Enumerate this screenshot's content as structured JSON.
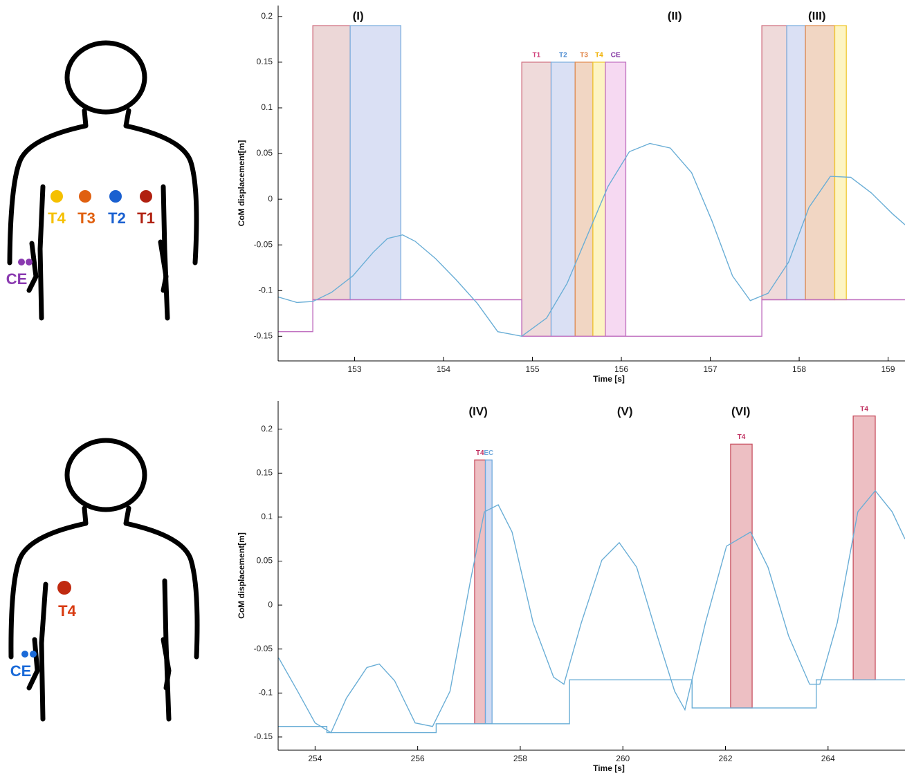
{
  "diagrams": [
    {
      "electrodes": [
        {
          "label": "T4",
          "color": "#f5c000"
        },
        {
          "label": "T3",
          "color": "#e06010"
        },
        {
          "label": "T2",
          "color": "#1a60d0"
        },
        {
          "label": "T1",
          "color": "#b02010"
        }
      ],
      "reference": {
        "label": "CE",
        "color": "#8a3ab0"
      }
    },
    {
      "electrodes": [
        {
          "label": "T4",
          "color": "#c02a10",
          "label_color": "#d83a10"
        }
      ],
      "reference": {
        "label": "CE",
        "color": "#1a6ad8"
      }
    }
  ],
  "chart_data": [
    {
      "type": "line",
      "ylabel": "CoM displacement[m]",
      "xlabel": "Time [s]",
      "xlim": [
        152.14,
        159.19
      ],
      "ylim": [
        -0.177,
        0.212
      ],
      "xticks": [
        153,
        154,
        155,
        156,
        157,
        158,
        159
      ],
      "yticks": [
        -0.15,
        -0.1,
        -0.05,
        0,
        0.05,
        0.1,
        0.15,
        0.2
      ],
      "annotations": [
        {
          "text": "(I)",
          "x": 153.04
        },
        {
          "text": "(II)",
          "x": 156.6
        },
        {
          "text": "(III)",
          "x": 158.2
        }
      ],
      "boxes": [
        {
          "x0": 152.53,
          "x1": 152.95,
          "y0": -0.11,
          "y1": 0.19,
          "color": "#e9d0d0",
          "edge": "#d07080"
        },
        {
          "x0": 152.95,
          "x1": 153.52,
          "y0": -0.11,
          "y1": 0.19,
          "color": "#d4daf2",
          "edge": "#7aaede"
        },
        {
          "x0": 154.88,
          "x1": 155.21,
          "y0": -0.15,
          "y1": 0.15,
          "color": "#ecd4d4",
          "edge": "#d07080",
          "label": "T1",
          "label_color": "#d0407a"
        },
        {
          "x0": 155.21,
          "x1": 155.48,
          "y0": -0.15,
          "y1": 0.15,
          "color": "#d4daf2",
          "edge": "#7aaede",
          "label": "T2",
          "label_color": "#4a8ad0"
        },
        {
          "x0": 155.48,
          "x1": 155.68,
          "y0": -0.15,
          "y1": 0.15,
          "color": "#efcfb8",
          "edge": "#e08a50",
          "label": "T3",
          "label_color": "#e08040"
        },
        {
          "x0": 155.68,
          "x1": 155.82,
          "y0": -0.15,
          "y1": 0.15,
          "color": "#fdf2b8",
          "edge": "#f0c830",
          "label": "T4",
          "label_color": "#f0b000"
        },
        {
          "x0": 155.82,
          "x1": 156.05,
          "y0": -0.15,
          "y1": 0.15,
          "color": "#f4d2f0",
          "edge": "#c070c0",
          "label": "CE",
          "label_color": "#8030a0"
        },
        {
          "x0": 157.58,
          "x1": 157.86,
          "y0": -0.11,
          "y1": 0.19,
          "color": "#ecd4d4",
          "edge": "#d07080"
        },
        {
          "x0": 157.86,
          "x1": 158.07,
          "y0": -0.11,
          "y1": 0.19,
          "color": "#d4daf2",
          "edge": "#7aaede"
        },
        {
          "x0": 158.07,
          "x1": 158.4,
          "y0": -0.11,
          "y1": 0.19,
          "color": "#efcfb8",
          "edge": "#e08a50"
        },
        {
          "x0": 158.4,
          "x1": 158.53,
          "y0": -0.11,
          "y1": 0.19,
          "color": "#fdf2b8",
          "edge": "#f0c830"
        }
      ],
      "series": [
        {
          "color": "#c070c0",
          "x": [
            152.14,
            152.53,
            152.53,
            154.88,
            154.88,
            157.58,
            157.58,
            159.19
          ],
          "values": [
            -0.145,
            -0.145,
            -0.11,
            -0.11,
            -0.15,
            -0.15,
            -0.11,
            -0.11
          ]
        },
        {
          "color": "#6aaed6",
          "x": [
            152.14,
            152.35,
            152.53,
            152.74,
            152.98,
            153.21,
            153.37,
            153.54,
            153.68,
            153.91,
            154.14,
            154.38,
            154.61,
            154.88,
            155.16,
            155.39,
            155.62,
            155.85,
            156.09,
            156.32,
            156.55,
            156.79,
            157.02,
            157.25,
            157.45,
            157.65,
            157.88,
            158.11,
            158.35,
            158.58,
            158.81,
            159.05,
            159.19
          ],
          "values": [
            -0.107,
            -0.113,
            -0.112,
            -0.102,
            -0.084,
            -0.058,
            -0.043,
            -0.039,
            -0.046,
            -0.065,
            -0.088,
            -0.114,
            -0.145,
            -0.15,
            -0.13,
            -0.092,
            -0.039,
            0.014,
            0.052,
            0.061,
            0.056,
            0.029,
            -0.024,
            -0.084,
            -0.111,
            -0.103,
            -0.069,
            -0.009,
            0.025,
            0.024,
            0.007,
            -0.016,
            -0.028
          ]
        }
      ]
    },
    {
      "type": "line",
      "ylabel": "CoM displacement[m]",
      "xlabel": "Time [s]",
      "xlim": [
        253.28,
        265.5
      ],
      "ylim": [
        -0.165,
        0.232
      ],
      "xticks": [
        254,
        256,
        258,
        260,
        262,
        264
      ],
      "yticks": [
        -0.15,
        -0.1,
        -0.05,
        0,
        0.05,
        0.1,
        0.15,
        0.2
      ],
      "annotations": [
        {
          "text": "(IV)",
          "x": 257.18
        },
        {
          "text": "(V)",
          "x": 260.04
        },
        {
          "text": "(VI)",
          "x": 262.3
        }
      ],
      "boxes": [
        {
          "x0": 257.11,
          "x1": 257.32,
          "y0": -0.135,
          "y1": 0.165,
          "color": "#eab4b8",
          "edge": "#c85060",
          "label": "T4",
          "label_color": "#c03060"
        },
        {
          "x0": 257.32,
          "x1": 257.45,
          "y0": -0.135,
          "y1": 0.165,
          "color": "#c8d4f0",
          "edge": "#6fa8dc",
          "label": "EC",
          "label_color": "#6fa8dc"
        },
        {
          "x0": 262.1,
          "x1": 262.52,
          "y0": -0.117,
          "y1": 0.183,
          "color": "#eab4b8",
          "edge": "#c85060",
          "label": "T4",
          "label_color": "#c03060"
        },
        {
          "x0": 264.49,
          "x1": 264.92,
          "y0": -0.085,
          "y1": 0.215,
          "color": "#eab4b8",
          "edge": "#c85060",
          "label": "T4",
          "label_color": "#c03060"
        }
      ],
      "series": [
        {
          "color": "#6aaed6",
          "x": [
            253.28,
            254.23,
            254.23,
            256.36,
            256.36,
            258.96,
            258.96,
            261.35,
            261.35,
            263.77,
            263.77,
            265.5
          ],
          "values": [
            -0.138,
            -0.138,
            -0.145,
            -0.145,
            -0.135,
            -0.135,
            -0.085,
            -0.085,
            -0.117,
            -0.117,
            -0.085,
            -0.085
          ]
        },
        {
          "color": "#6aaed6",
          "x": [
            253.29,
            253.66,
            254.0,
            254.31,
            254.61,
            255.01,
            255.25,
            255.55,
            255.95,
            256.29,
            256.63,
            257.03,
            257.3,
            257.57,
            257.84,
            258.25,
            258.65,
            258.85,
            259.19,
            259.59,
            259.93,
            260.27,
            260.67,
            261.01,
            261.21,
            261.61,
            262.02,
            262.49,
            262.83,
            263.23,
            263.64,
            263.84,
            264.18,
            264.58,
            264.92,
            265.25,
            265.5
          ],
          "values": [
            -0.06,
            -0.098,
            -0.134,
            -0.145,
            -0.106,
            -0.071,
            -0.067,
            -0.086,
            -0.134,
            -0.138,
            -0.098,
            0.028,
            0.106,
            0.114,
            0.083,
            -0.02,
            -0.082,
            -0.09,
            -0.02,
            0.051,
            0.071,
            0.043,
            -0.035,
            -0.098,
            -0.119,
            -0.02,
            0.067,
            0.083,
            0.043,
            -0.035,
            -0.09,
            -0.09,
            -0.02,
            0.106,
            0.13,
            0.106,
            0.075
          ]
        }
      ]
    }
  ]
}
